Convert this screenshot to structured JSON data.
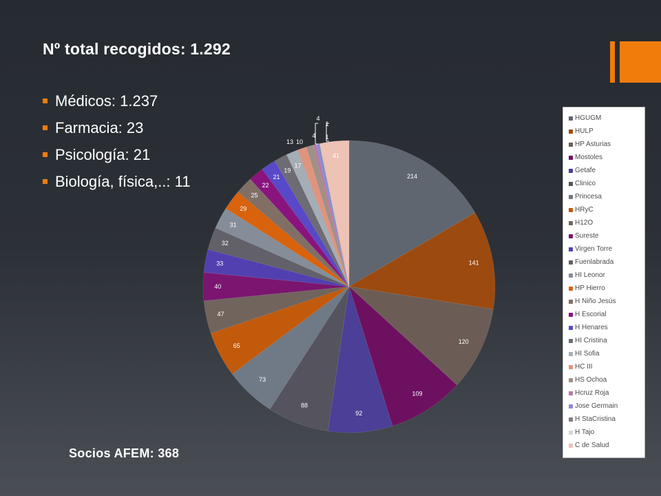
{
  "slide": {
    "title": "Nº total recogidos: 1.292",
    "bullets": [
      "Médicos: 1.237",
      "Farmacia: 23",
      "Psicología: 21",
      "Biología, física,..: 11"
    ],
    "footer": "Socios AFEM: 368",
    "accent_color": "#f07c0c"
  },
  "chart_data": {
    "type": "pie",
    "categories": [
      "HGUGM",
      "HULP",
      "HP Asturias",
      "Mostoles",
      "Getafe",
      "Clinico",
      "Princesa",
      "HRyC",
      "H12O",
      "Sureste",
      "Virgen Torre",
      "Fuenlabrada",
      "HI Leonor",
      "HP Hierro",
      "H Niño Jesús",
      "H Escorial",
      "H Henares",
      "HI Cristina",
      "HI Sofia",
      "HC III",
      "HS Ochoa",
      "Hcruz Roja",
      "Jose Germain",
      "H StaCristina",
      "H Tajo",
      "C de Salud"
    ],
    "values": [
      214,
      141,
      120,
      109,
      92,
      88,
      73,
      65,
      47,
      40,
      33,
      32,
      31,
      29,
      25,
      22,
      21,
      19,
      17,
      13,
      10,
      4,
      4,
      1,
      1,
      41
    ],
    "value_labels": [
      "214",
      "141",
      "120",
      "109",
      "92",
      "88",
      "73",
      "65",
      "47",
      "40",
      "33",
      "32",
      "31",
      "29",
      "25",
      "22",
      "21",
      "19",
      "17",
      "13",
      "10",
      "4",
      "4",
      "1",
      "1",
      "41"
    ],
    "colors": [
      "#5f6670",
      "#9c4a0f",
      "#6b5d55",
      "#6e1060",
      "#4b3f97",
      "#55535e",
      "#6f7a86",
      "#c25a0c",
      "#71645d",
      "#7b1570",
      "#5240b0",
      "#626068",
      "#858d98",
      "#d9620c",
      "#816f66",
      "#8a147e",
      "#5849c8",
      "#6d6b73",
      "#a5adb6",
      "#e0947e",
      "#a09088",
      "#b87aa4",
      "#8f8ad6",
      "#7f7e86",
      "#d6d8dc",
      "#eec2b4"
    ],
    "legend_position": "right"
  }
}
